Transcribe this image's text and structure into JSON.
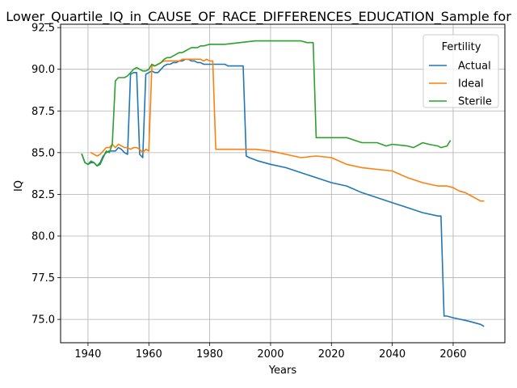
{
  "chart_data": {
    "type": "line",
    "title": "Lower_Quartile_IQ_in_CAUSE_OF_RACE_DIFFERENCES_EDUCATION_Sample for",
    "xlabel": "Years",
    "ylabel": "IQ",
    "xlim": [
      1931,
      2077
    ],
    "ylim": [
      73.6,
      92.7
    ],
    "xticks": [
      1940,
      1960,
      1980,
      2000,
      2020,
      2040,
      2060
    ],
    "yticks": [
      75.0,
      77.5,
      80.0,
      82.5,
      85.0,
      87.5,
      90.0,
      92.5
    ],
    "xtick_labels": [
      "1940",
      "1960",
      "1980",
      "2000",
      "2020",
      "2040",
      "2060"
    ],
    "ytick_labels": [
      "75.0",
      "77.5",
      "80.0",
      "82.5",
      "85.0",
      "87.5",
      "90.0",
      "92.5"
    ],
    "grid": true,
    "legend": {
      "title": "Fertility",
      "placement": "top-right"
    },
    "colors": {
      "Actual": "#1f77b4",
      "Ideal": "#ff7f0e",
      "Sterile": "#2ca02c"
    },
    "series": [
      {
        "name": "Actual",
        "x": [
          1938,
          1939,
          1940,
          1941,
          1942,
          1943,
          1944,
          1945,
          1946,
          1947,
          1948,
          1949,
          1950,
          1951,
          1952,
          1953,
          1954,
          1955,
          1956,
          1957,
          1958,
          1959,
          1960,
          1961,
          1962,
          1963,
          1964,
          1965,
          1966,
          1967,
          1968,
          1969,
          1970,
          1971,
          1972,
          1973,
          1974,
          1975,
          1976,
          1977,
          1978,
          1979,
          1980,
          1981,
          1982,
          1983,
          1984,
          1985,
          1986,
          1987,
          1988,
          1989,
          1990,
          1991,
          1992,
          1993,
          1996,
          2000,
          2005,
          2010,
          2015,
          2020,
          2025,
          2030,
          2035,
          2040,
          2045,
          2050,
          2055,
          2056,
          2057,
          2058,
          2060,
          2065,
          2069,
          2070
        ],
        "values": [
          84.9,
          84.4,
          84.3,
          84.4,
          84.4,
          84.2,
          84.4,
          84.8,
          85.0,
          85.1,
          85.1,
          85.1,
          85.3,
          85.2,
          85.0,
          84.9,
          89.7,
          89.8,
          89.8,
          84.9,
          84.7,
          89.7,
          89.8,
          89.9,
          89.8,
          89.8,
          90.0,
          90.2,
          90.3,
          90.3,
          90.4,
          90.4,
          90.5,
          90.5,
          90.6,
          90.6,
          90.5,
          90.5,
          90.4,
          90.4,
          90.3,
          90.3,
          90.3,
          90.3,
          90.3,
          90.3,
          90.3,
          90.3,
          90.2,
          90.2,
          90.2,
          90.2,
          90.2,
          90.2,
          84.8,
          84.7,
          84.5,
          84.3,
          84.1,
          83.8,
          83.5,
          83.2,
          83.0,
          82.6,
          82.3,
          82.0,
          81.7,
          81.4,
          81.2,
          81.2,
          75.2,
          75.2,
          75.1,
          74.9,
          74.7,
          74.6
        ]
      },
      {
        "name": "Ideal",
        "x": [
          1941,
          1942,
          1943,
          1944,
          1945,
          1946,
          1947,
          1948,
          1949,
          1950,
          1951,
          1952,
          1953,
          1954,
          1955,
          1956,
          1957,
          1958,
          1959,
          1960,
          1961,
          1962,
          1963,
          1964,
          1965,
          1966,
          1967,
          1968,
          1969,
          1970,
          1971,
          1972,
          1973,
          1974,
          1975,
          1976,
          1977,
          1978,
          1979,
          1980,
          1981,
          1982,
          1983,
          1985,
          1990,
          1995,
          2000,
          2005,
          2010,
          2015,
          2020,
          2025,
          2030,
          2035,
          2040,
          2045,
          2050,
          2055,
          2058,
          2060,
          2062,
          2064,
          2066,
          2068,
          2069,
          2070
        ],
        "values": [
          85.0,
          84.9,
          84.8,
          84.9,
          85.1,
          85.3,
          85.3,
          85.5,
          85.3,
          85.5,
          85.4,
          85.3,
          85.3,
          85.2,
          85.3,
          85.3,
          85.2,
          85.0,
          85.2,
          85.1,
          90.2,
          90.2,
          90.3,
          90.4,
          90.5,
          90.5,
          90.5,
          90.5,
          90.5,
          90.5,
          90.6,
          90.6,
          90.6,
          90.6,
          90.6,
          90.6,
          90.6,
          90.5,
          90.6,
          90.5,
          90.5,
          85.2,
          85.2,
          85.2,
          85.2,
          85.2,
          85.1,
          84.9,
          84.7,
          84.8,
          84.7,
          84.3,
          84.1,
          84.0,
          83.9,
          83.5,
          83.2,
          83.0,
          83.0,
          82.9,
          82.7,
          82.6,
          82.4,
          82.2,
          82.1,
          82.1
        ]
      },
      {
        "name": "Sterile",
        "x": [
          1938,
          1939,
          1940,
          1941,
          1942,
          1943,
          1944,
          1945,
          1946,
          1947,
          1948,
          1949,
          1950,
          1951,
          1952,
          1953,
          1954,
          1955,
          1956,
          1957,
          1958,
          1959,
          1960,
          1961,
          1962,
          1963,
          1964,
          1965,
          1966,
          1967,
          1968,
          1969,
          1970,
          1971,
          1972,
          1973,
          1974,
          1975,
          1976,
          1977,
          1978,
          1980,
          1985,
          1990,
          1995,
          2000,
          2005,
          2008,
          2010,
          2012,
          2014,
          2015,
          2016,
          2020,
          2025,
          2030,
          2035,
          2038,
          2040,
          2045,
          2047,
          2050,
          2052,
          2055,
          2056,
          2058,
          2059
        ],
        "values": [
          84.9,
          84.4,
          84.3,
          84.5,
          84.4,
          84.2,
          84.3,
          84.7,
          85.1,
          85.0,
          85.5,
          89.3,
          89.5,
          89.5,
          89.5,
          89.6,
          89.8,
          90.0,
          90.1,
          90.0,
          89.9,
          89.9,
          90.0,
          90.3,
          90.2,
          90.3,
          90.4,
          90.6,
          90.7,
          90.7,
          90.8,
          90.9,
          91.0,
          91.0,
          91.1,
          91.2,
          91.3,
          91.3,
          91.3,
          91.4,
          91.4,
          91.5,
          91.5,
          91.6,
          91.7,
          91.7,
          91.7,
          91.7,
          91.7,
          91.6,
          91.6,
          85.9,
          85.9,
          85.9,
          85.9,
          85.6,
          85.6,
          85.4,
          85.5,
          85.4,
          85.3,
          85.6,
          85.5,
          85.4,
          85.3,
          85.4,
          85.7
        ]
      }
    ]
  }
}
